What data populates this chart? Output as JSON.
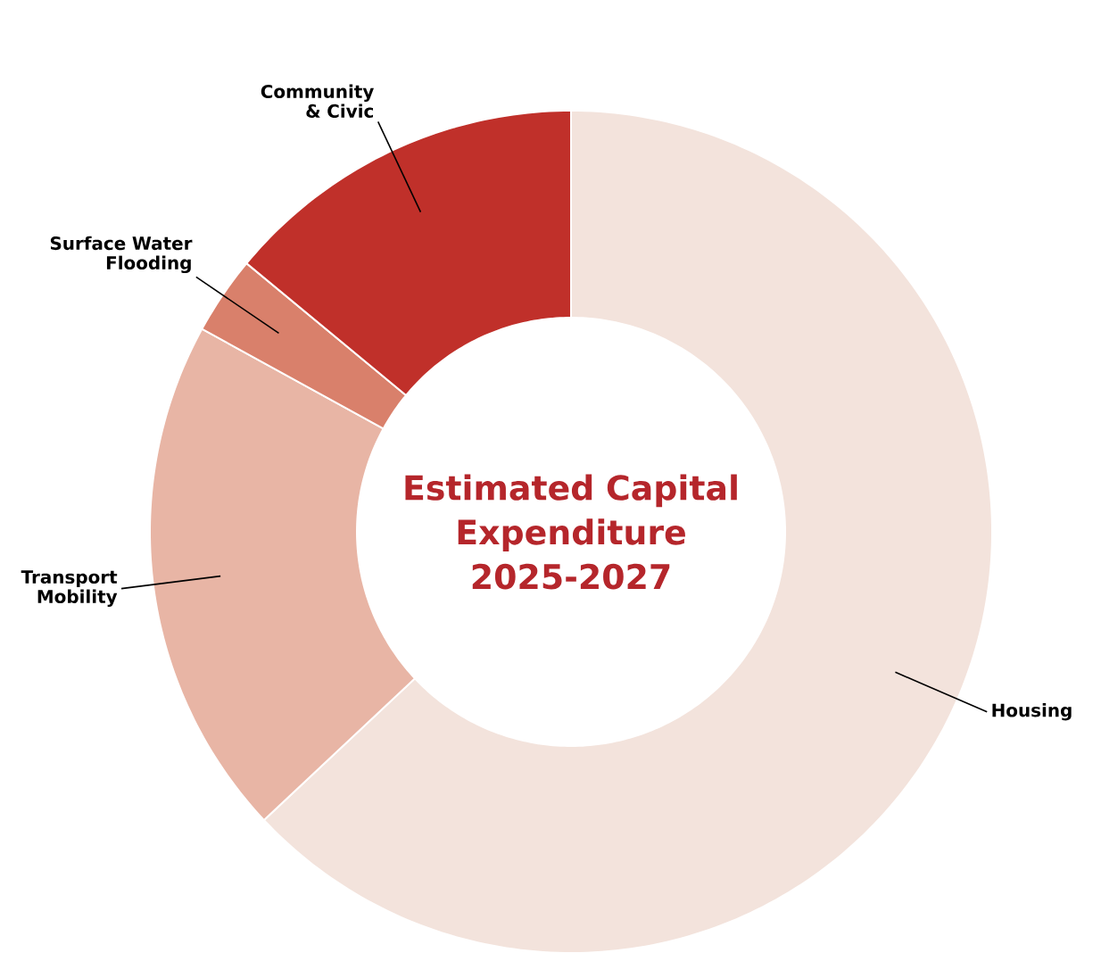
{
  "chart_data": {
    "type": "donut",
    "title": "Estimated Capital Expenditure 2025-2027",
    "categories": [
      "Housing",
      "Transport Mobility",
      "Surface Water Flooding",
      "Community & Civic"
    ],
    "values": [
      63,
      20,
      3,
      14
    ],
    "colors": [
      "#f3e3dc",
      "#e8b5a5",
      "#d9806b",
      "#c0302a"
    ]
  }
}
